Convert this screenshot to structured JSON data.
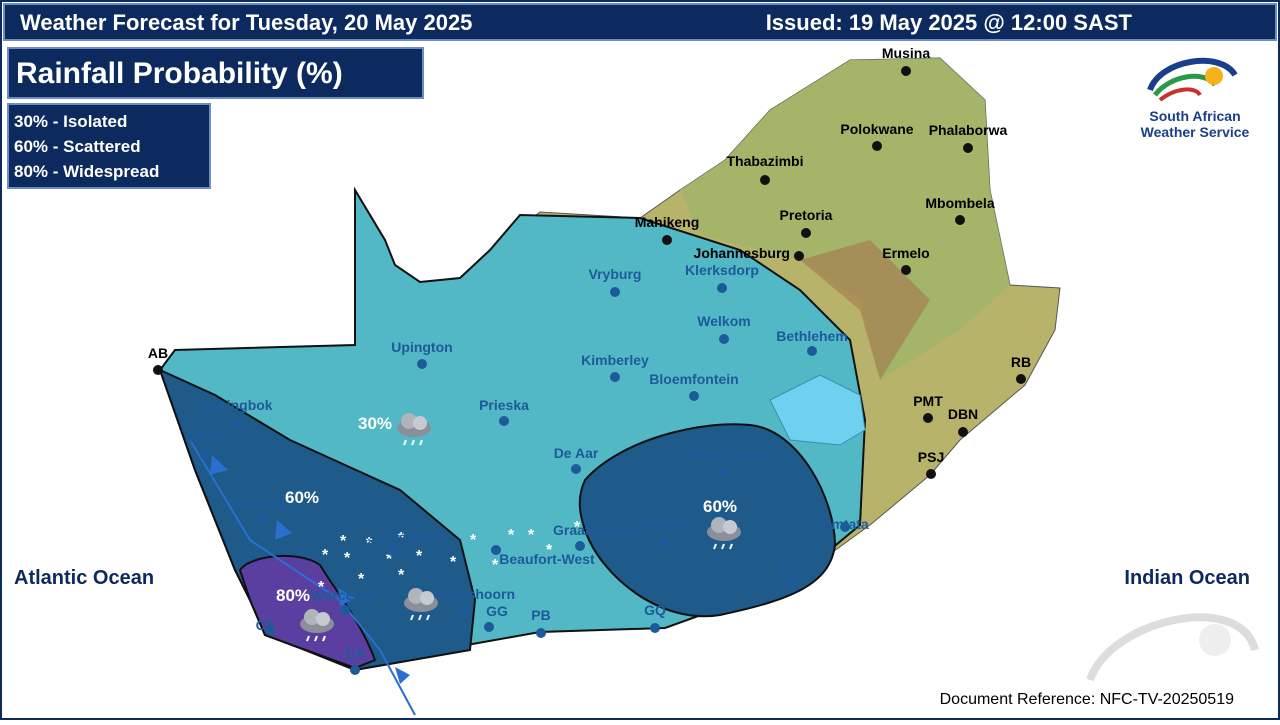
{
  "header": {
    "title": "Weather Forecast for Tuesday, 20 May 2025",
    "issued": "Issued: 19 May 2025 @ 12:00 SAST"
  },
  "subtitle": "Rainfall Probability (%)",
  "legend": [
    "30% - Isolated",
    "60% - Scattered",
    "80% - Widespread"
  ],
  "zones": [
    "30%",
    "60%",
    "60%",
    "80%"
  ],
  "oceans": [
    "Atlantic Ocean",
    "Indian Ocean"
  ],
  "cities": [
    "Musina",
    "Polokwane",
    "Phalaborwa",
    "Thabazimbi",
    "Mahikeng",
    "Pretoria",
    "Mbombela",
    "Johannesburg",
    "Klerksdorp",
    "Ermelo",
    "Vryburg",
    "Welkom",
    "Bethlehem",
    "Upington",
    "Kimberley",
    "Bloemfontein",
    "RB",
    "AB",
    "Springbok",
    "Prieska",
    "PMT",
    "DBN",
    "HON",
    "De Aar",
    "Aliwal North",
    "PSJ",
    "Vredendal",
    "Sutherland",
    "Graaf-Reinet",
    "Cradock",
    "Umtata",
    "Beaufort-West",
    "EL",
    "Oudtshoorn",
    "Worcester",
    "GG",
    "PB",
    "GQ",
    "CT",
    "CA"
  ],
  "logo": [
    "South African",
    "Weather Service"
  ],
  "reference": "Document Reference: NFC-TV-20250519"
}
